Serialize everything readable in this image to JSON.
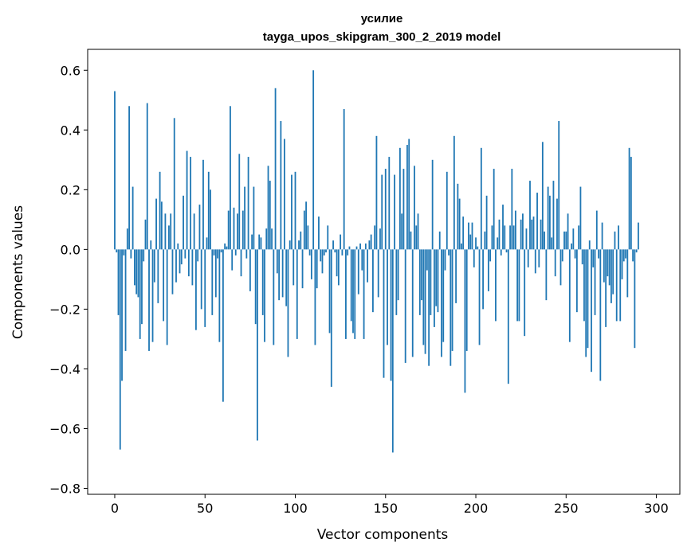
{
  "chart_data": {
    "type": "bar",
    "title": "усилие",
    "subtitle": "tayga_upos_skipgram_300_2_2019 model",
    "xlabel": "Vector components",
    "ylabel": "Components values",
    "xlim": [
      -15,
      313
    ],
    "ylim": [
      -0.82,
      0.67
    ],
    "xticks": [
      0,
      50,
      100,
      150,
      200,
      250,
      300
    ],
    "xtick_labels": [
      "0",
      "50",
      "100",
      "150",
      "200",
      "250",
      "300"
    ],
    "yticks": [
      0.6,
      0.4,
      0.2,
      0.0,
      -0.2,
      -0.4,
      -0.6,
      -0.8
    ],
    "ytick_labels": [
      "0.6",
      "0.4",
      "0.2",
      "0.0",
      "−0.2",
      "−0.4",
      "−0.6",
      "−0.8"
    ],
    "bar_color": "#1f77b4",
    "values": [
      0.53,
      -0.01,
      -0.22,
      -0.67,
      -0.44,
      -0.02,
      -0.34,
      0.07,
      0.48,
      -0.03,
      0.21,
      -0.12,
      -0.15,
      -0.16,
      -0.3,
      -0.25,
      -0.04,
      0.1,
      0.49,
      -0.34,
      0.03,
      -0.31,
      -0.11,
      0.17,
      -0.18,
      0.26,
      0.16,
      -0.24,
      0.12,
      -0.32,
      0.08,
      0.12,
      -0.15,
      0.44,
      -0.11,
      0.02,
      -0.08,
      -0.05,
      0.18,
      -0.03,
      0.33,
      -0.09,
      0.31,
      -0.12,
      0.12,
      -0.27,
      -0.04,
      0.15,
      -0.2,
      0.3,
      -0.26,
      0.04,
      0.26,
      0.2,
      -0.22,
      -0.02,
      -0.16,
      -0.03,
      -0.31,
      -0.01,
      -0.51,
      0.02,
      0.01,
      0.13,
      0.48,
      -0.07,
      0.14,
      -0.02,
      0.12,
      0.32,
      -0.09,
      0.13,
      0.21,
      -0.03,
      0.31,
      -0.14,
      0.05,
      0.21,
      -0.25,
      -0.64,
      0.05,
      0.04,
      -0.22,
      -0.31,
      0.07,
      0.28,
      0.23,
      0.07,
      -0.32,
      0.54,
      -0.08,
      -0.17,
      0.43,
      -0.16,
      0.37,
      -0.19,
      -0.36,
      0.03,
      0.25,
      -0.12,
      0.26,
      -0.3,
      0.03,
      0.06,
      -0.13,
      0.13,
      0.16,
      0.08,
      -0.02,
      -0.1,
      0.6,
      -0.32,
      -0.13,
      0.11,
      -0.04,
      -0.08,
      -0.02,
      -0.01,
      0.08,
      -0.28,
      -0.46,
      0.03,
      -0.01,
      -0.09,
      -0.12,
      0.05,
      -0.02,
      0.47,
      -0.3,
      -0.02,
      0.01,
      -0.24,
      -0.28,
      -0.3,
      0.01,
      -0.15,
      0.02,
      -0.07,
      -0.3,
      0.02,
      -0.11,
      0.03,
      0.05,
      -0.21,
      0.08,
      0.38,
      -0.16,
      0.07,
      0.25,
      -0.43,
      0.27,
      -0.32,
      0.31,
      -0.44,
      -0.68,
      0.25,
      -0.22,
      -0.17,
      0.34,
      0.12,
      0.27,
      -0.38,
      0.35,
      0.37,
      0.06,
      -0.36,
      0.28,
      0.08,
      0.12,
      -0.22,
      -0.17,
      -0.32,
      -0.35,
      -0.07,
      -0.39,
      -0.22,
      0.3,
      -0.26,
      -0.19,
      -0.21,
      0.06,
      -0.36,
      -0.31,
      -0.07,
      0.26,
      -0.02,
      -0.39,
      -0.34,
      0.38,
      -0.18,
      0.22,
      0.17,
      0.02,
      0.11,
      -0.48,
      -0.34,
      0.09,
      0.05,
      0.09,
      -0.06,
      0.04,
      0.01,
      -0.32,
      0.34,
      -0.2,
      0.06,
      0.18,
      -0.14,
      -0.04,
      0.08,
      0.27,
      -0.24,
      0.04,
      0.1,
      -0.02,
      0.15,
      0.08,
      -0.01,
      -0.45,
      0.08,
      0.27,
      0.08,
      0.13,
      -0.24,
      -0.24,
      0.1,
      0.12,
      -0.29,
      0.07,
      -0.06,
      0.23,
      0.1,
      0.11,
      -0.08,
      0.19,
      -0.06,
      0.1,
      0.36,
      0.06,
      -0.17,
      0.21,
      0.18,
      0.04,
      0.23,
      -0.09,
      0.17,
      0.43,
      -0.12,
      -0.04,
      0.06,
      0.06,
      0.12,
      -0.31,
      0.02,
      0.07,
      -0.03,
      -0.21,
      0.08,
      0.21,
      -0.05,
      -0.24,
      -0.36,
      -0.33,
      0.03,
      -0.41,
      -0.06,
      -0.22,
      0.13,
      -0.03,
      -0.44,
      0.09,
      -0.11,
      -0.26,
      -0.09,
      -0.12,
      -0.18,
      -0.15,
      0.06,
      -0.24,
      0.08,
      -0.24,
      -0.1,
      -0.04,
      -0.03,
      -0.16,
      0.34,
      0.31,
      -0.04,
      -0.33,
      -0.01,
      0.09
    ]
  }
}
